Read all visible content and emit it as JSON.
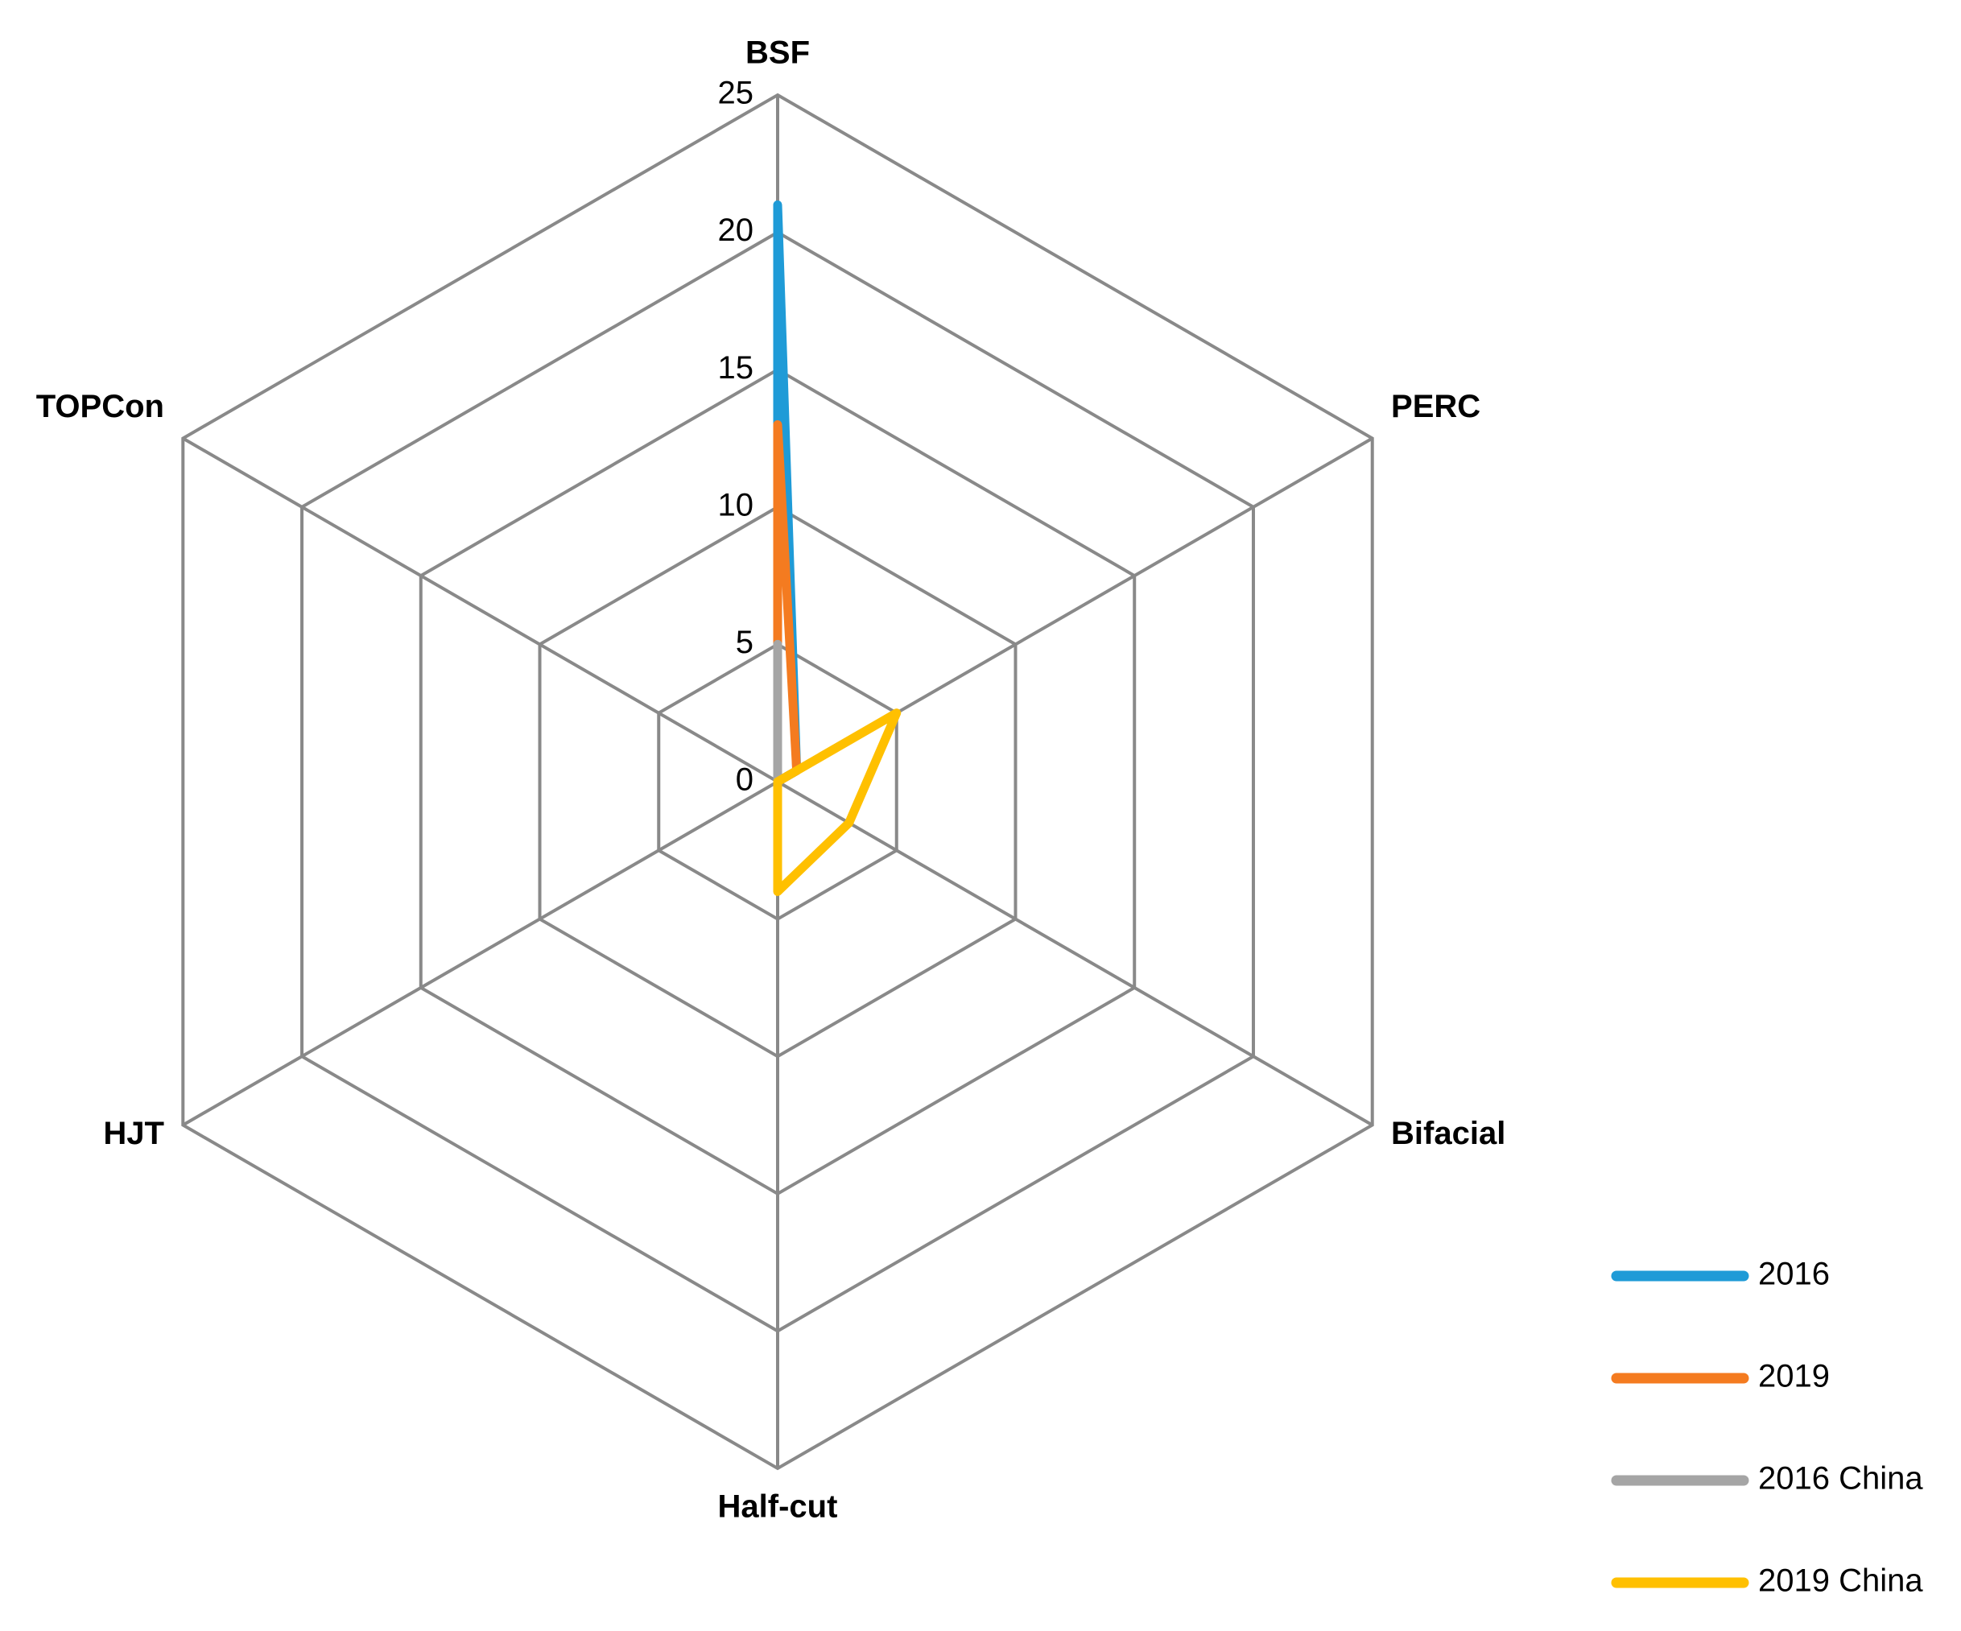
{
  "chart_data": {
    "type": "radar",
    "categories": [
      "BSF",
      "PERC",
      "Bifacial",
      "Half-cut",
      "HJT",
      "TOPCon"
    ],
    "series": [
      {
        "name": "2016",
        "color": "#1f9bd7",
        "values": [
          21,
          0.8,
          0,
          0,
          0,
          0
        ]
      },
      {
        "name": "2019",
        "color": "#f47b20",
        "values": [
          13,
          0.8,
          0,
          0,
          0,
          0
        ]
      },
      {
        "name": "2016 China",
        "color": "#a5a5a5",
        "values": [
          5,
          0,
          0,
          0,
          0,
          0
        ]
      },
      {
        "name": "2019 China",
        "color": "#ffc000",
        "values": [
          0,
          5,
          3,
          4,
          0,
          0
        ]
      }
    ],
    "ylim": [
      0,
      25
    ],
    "yticks": [
      0,
      5,
      10,
      15,
      20,
      25
    ],
    "grid": true,
    "grid_color": "#898989",
    "legend": "right"
  }
}
